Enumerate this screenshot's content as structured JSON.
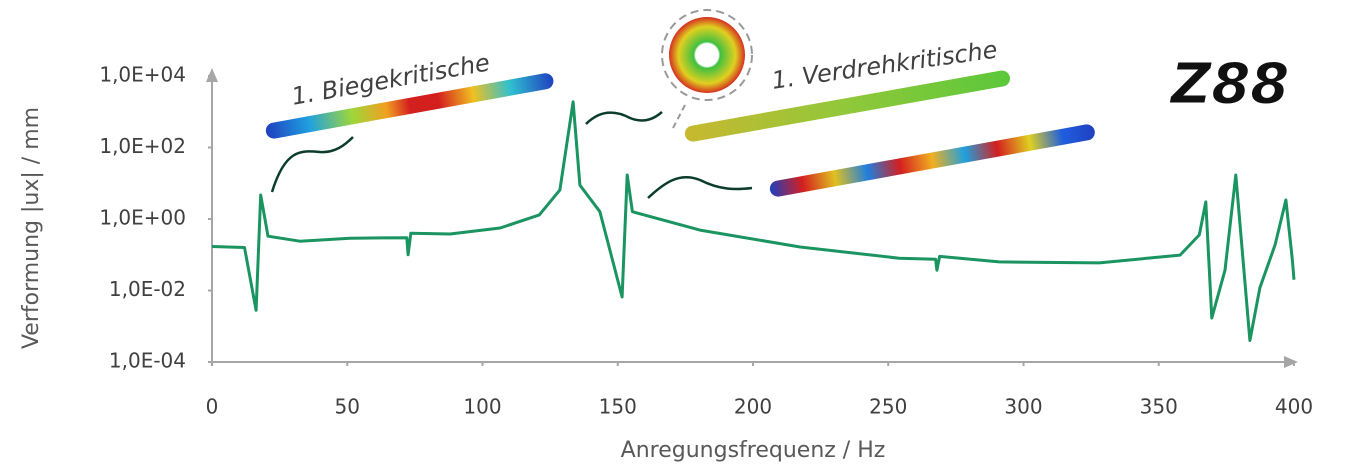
{
  "chart_data": {
    "type": "line",
    "xlabel": "Anregungsfrequenz / Hz",
    "ylabel": "Verformung |ux| / mm",
    "annotations": [
      "1. Biegekritische",
      "1. Verdrehkritische"
    ],
    "logo": "Z88",
    "xlim": [
      0,
      400
    ],
    "xticks": [
      0,
      50,
      100,
      150,
      200,
      250,
      300,
      350,
      400
    ],
    "ylim": [
      0.0001,
      10000
    ],
    "log_y": true,
    "yticks": [
      {
        "value": 0.0001,
        "label": "1,0E-04"
      },
      {
        "value": 0.01,
        "label": "1,0E-02"
      },
      {
        "value": 1,
        "label": "1,0E+00"
      },
      {
        "value": 100,
        "label": "1,0E+02"
      },
      {
        "value": 10000,
        "label": "1,0E+04"
      }
    ],
    "series": [
      {
        "color": "#1a9460",
        "x": [
          0,
          12,
          16.3,
          18,
          20.7,
          32.5,
          51,
          72,
          72.5,
          73.5,
          88,
          106.5,
          121,
          128.6,
          133.5,
          136,
          143.4,
          151.6,
          153.5,
          155.4,
          180.4,
          217.4,
          254,
          267.5,
          268,
          269,
          291,
          328,
          357.9,
          365,
          367.4,
          369.6,
          374.5,
          378.5,
          383.7,
          387.4,
          393,
          397,
          399.4,
          400
        ],
        "values": [
          0.17,
          0.16,
          0.0028,
          4.7,
          0.33,
          0.24,
          0.29,
          0.3,
          0.1,
          0.4,
          0.38,
          0.56,
          1.3,
          6.5,
          1900,
          8.9,
          1.6,
          0.0066,
          17,
          1.6,
          0.49,
          0.165,
          0.08,
          0.075,
          0.037,
          0.09,
          0.063,
          0.059,
          0.098,
          0.36,
          3,
          0.0017,
          0.037,
          17,
          0.0004,
          0.012,
          0.19,
          3.4,
          0.07,
          0.02
        ]
      }
    ]
  }
}
